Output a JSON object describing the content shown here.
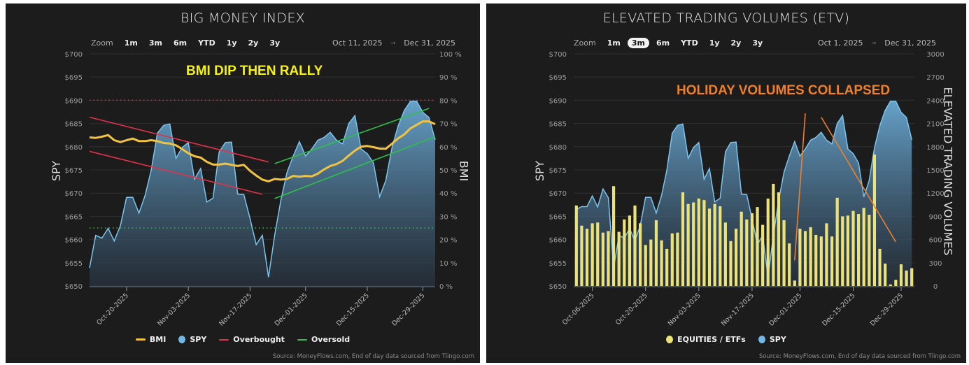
{
  "colors": {
    "spy": "#6fb8e6",
    "bmi": "#f2c242",
    "overbought": "#e0334a",
    "oversold": "#2fbf4a",
    "equities": "#ece27a",
    "orange": "#f07f2a",
    "note_yellow": "#f6f20a"
  },
  "chart_data": [
    {
      "type": "line",
      "title": "BIG MONEY INDEX",
      "annotation_text": "BMI DIP THEN RALLY",
      "zoom": {
        "label": "Zoom",
        "options": [
          "1m",
          "3m",
          "6m",
          "YTD",
          "1y",
          "2y",
          "3y"
        ],
        "selected": null
      },
      "range": {
        "from": "Oct 11, 2025",
        "to": "Dec 31, 2025"
      },
      "ylabel": "SPY",
      "y2label": "BMI",
      "ylim": [
        650,
        700
      ],
      "y2lim": [
        0,
        100
      ],
      "y_ticks": [
        "$700",
        "$695",
        "$690",
        "$685",
        "$680",
        "$675",
        "$670",
        "$665",
        "$660",
        "$655",
        "$650"
      ],
      "y2_ticks": [
        "100 %",
        "90 %",
        "80 %",
        "70 %",
        "60 %",
        "50 %",
        "40 %",
        "30 %",
        "20 %",
        "10 %",
        "0 %"
      ],
      "x_ticks": [
        {
          "date": "2025-10-20",
          "label": "Oct-20-2025"
        },
        {
          "date": "2025-11-03",
          "label": "Nov-03-2025"
        },
        {
          "date": "2025-11-17",
          "label": "Nov-17-2025"
        },
        {
          "date": "2025-12-01",
          "label": "Dec-01-2025"
        },
        {
          "date": "2025-12-15",
          "label": "Dec-15-2025"
        },
        {
          "date": "2025-12-29",
          "label": "Dec-29-2025"
        }
      ],
      "x": [
        "2025-10-10",
        "2025-10-13",
        "2025-10-14",
        "2025-10-15",
        "2025-10-16",
        "2025-10-17",
        "2025-10-20",
        "2025-10-21",
        "2025-10-22",
        "2025-10-23",
        "2025-10-24",
        "2025-10-27",
        "2025-10-28",
        "2025-10-29",
        "2025-10-30",
        "2025-10-31",
        "2025-11-03",
        "2025-11-04",
        "2025-11-05",
        "2025-11-06",
        "2025-11-07",
        "2025-11-10",
        "2025-11-11",
        "2025-11-12",
        "2025-11-13",
        "2025-11-14",
        "2025-11-17",
        "2025-11-18",
        "2025-11-19",
        "2025-11-20",
        "2025-11-21",
        "2025-11-24",
        "2025-11-25",
        "2025-11-26",
        "2025-11-28",
        "2025-12-01",
        "2025-12-02",
        "2025-12-03",
        "2025-12-04",
        "2025-12-05",
        "2025-12-08",
        "2025-12-09",
        "2025-12-10",
        "2025-12-11",
        "2025-12-12",
        "2025-12-15",
        "2025-12-16",
        "2025-12-17",
        "2025-12-18",
        "2025-12-19",
        "2025-12-22",
        "2025-12-23",
        "2025-12-24",
        "2025-12-26",
        "2025-12-29",
        "2025-12-30",
        "2025-12-31"
      ],
      "series": [
        {
          "name": "SPY",
          "axis": "left",
          "kind": "area",
          "values": [
            653.9,
            660.9,
            660.3,
            662.4,
            659.7,
            663.0,
            669.1,
            669.1,
            665.7,
            669.5,
            675.0,
            682.9,
            684.6,
            684.9,
            677.5,
            679.8,
            680.9,
            673.0,
            675.3,
            668.1,
            668.9,
            678.9,
            680.9,
            681.0,
            669.8,
            669.7,
            664.5,
            658.9,
            660.9,
            651.9,
            660.9,
            668.5,
            674.5,
            678.0,
            681.1,
            678.0,
            679.5,
            681.4,
            682.0,
            683.1,
            681.4,
            680.6,
            685.0,
            686.7,
            679.5,
            678.5,
            676.5,
            669.2,
            672.7,
            679.8,
            684.5,
            687.8,
            689.8,
            689.8,
            687.4,
            686.3,
            681.5
          ]
        },
        {
          "name": "BMI",
          "axis": "right",
          "kind": "line",
          "values": [
            64.0,
            63.8,
            64.3,
            65.0,
            62.8,
            62.0,
            62.8,
            63.5,
            62.4,
            62.4,
            62.8,
            62.4,
            61.6,
            61.4,
            60.6,
            59.0,
            57.2,
            55.9,
            55.3,
            53.5,
            52.3,
            52.3,
            52.7,
            52.2,
            51.7,
            52.2,
            49.6,
            47.6,
            45.8,
            45.1,
            46.1,
            45.8,
            46.1,
            47.4,
            47.1,
            47.4,
            47.2,
            48.4,
            50.2,
            51.7,
            52.5,
            53.9,
            56.2,
            58.3,
            60.0,
            60.3,
            59.8,
            59.2,
            59.1,
            61.3,
            63.6,
            65.3,
            67.9,
            69.4,
            70.9,
            70.9,
            69.7
          ]
        }
      ],
      "reference_lines": [
        {
          "name": "Overbought",
          "axis": "right",
          "value": 80,
          "color": "#e0334a"
        },
        {
          "name": "Oversold",
          "axis": "right",
          "value": 25,
          "color": "#2fbf4a"
        }
      ],
      "trend_lines": [
        {
          "axis": "right",
          "from": [
            "2025-10-10",
            72.7
          ],
          "to": [
            "2025-11-20",
            53.4
          ],
          "color": "#e0334a"
        },
        {
          "axis": "right",
          "from": [
            "2025-10-10",
            58.0
          ],
          "to": [
            "2025-11-19",
            39.5
          ],
          "color": "#e0334a"
        },
        {
          "axis": "right",
          "from": [
            "2025-11-21",
            52.7
          ],
          "to": [
            "2025-12-30",
            76.5
          ],
          "color": "#2fbf4a"
        },
        {
          "axis": "right",
          "from": [
            "2025-11-21",
            37.7
          ],
          "to": [
            "2025-12-31",
            64.3
          ],
          "color": "#2fbf4a"
        }
      ],
      "legend": {
        "placement": "bottom",
        "items": [
          {
            "label": "BMI",
            "type": "line",
            "color": "#f2c242"
          },
          {
            "label": "SPY",
            "type": "dot",
            "color": "#6fb8e6"
          },
          {
            "label": "Overbought",
            "type": "line",
            "color": "#e0334a"
          },
          {
            "label": "Oversold",
            "type": "line",
            "color": "#2fbf4a"
          }
        ]
      },
      "source": "Source: MoneyFlows.com, End of day data sourced from Tiingo.com",
      "grid": true
    },
    {
      "type": "bar",
      "title": "ELEVATED TRADING VOLUMES (ETV)",
      "annotation_text": "HOLIDAY VOLUMES COLLAPSED",
      "zoom": {
        "label": "Zoom",
        "options": [
          "1m",
          "3m",
          "6m",
          "YTD",
          "1y",
          "2y",
          "3y"
        ],
        "selected": "3m"
      },
      "range": {
        "from": "Oct 1, 2025",
        "to": "Dec 31, 2025"
      },
      "ylabel": "SPY",
      "y2label": "ELEVATED TRADING VOLUMES",
      "ylim": [
        650,
        700
      ],
      "y2lim": [
        0,
        3000
      ],
      "y_ticks": [
        "$700",
        "$695",
        "$690",
        "$685",
        "$680",
        "$675",
        "$670",
        "$665",
        "$660",
        "$655",
        "$650"
      ],
      "y2_ticks": [
        "3000",
        "2700",
        "2400",
        "2100",
        "1800",
        "1500",
        "1200",
        "900",
        "600",
        "300",
        "0"
      ],
      "x_ticks": [
        {
          "date": "2025-10-06",
          "label": "Oct-06-2025"
        },
        {
          "date": "2025-10-20",
          "label": "Oct-20-2025"
        },
        {
          "date": "2025-11-03",
          "label": "Nov-03-2025"
        },
        {
          "date": "2025-11-17",
          "label": "Nov-17-2025"
        },
        {
          "date": "2025-12-01",
          "label": "Dec-01-2025"
        },
        {
          "date": "2025-12-15",
          "label": "Dec-15-2025"
        },
        {
          "date": "2025-12-29",
          "label": "Dec-29-2025"
        }
      ],
      "x": [
        "2025-10-01",
        "2025-10-02",
        "2025-10-03",
        "2025-10-06",
        "2025-10-07",
        "2025-10-08",
        "2025-10-09",
        "2025-10-10",
        "2025-10-13",
        "2025-10-14",
        "2025-10-15",
        "2025-10-16",
        "2025-10-17",
        "2025-10-20",
        "2025-10-21",
        "2025-10-22",
        "2025-10-23",
        "2025-10-24",
        "2025-10-27",
        "2025-10-28",
        "2025-10-29",
        "2025-10-30",
        "2025-10-31",
        "2025-11-03",
        "2025-11-04",
        "2025-11-05",
        "2025-11-06",
        "2025-11-07",
        "2025-11-10",
        "2025-11-11",
        "2025-11-12",
        "2025-11-13",
        "2025-11-14",
        "2025-11-17",
        "2025-11-18",
        "2025-11-19",
        "2025-11-20",
        "2025-11-21",
        "2025-11-24",
        "2025-11-25",
        "2025-11-26",
        "2025-11-28",
        "2025-12-01",
        "2025-12-02",
        "2025-12-03",
        "2025-12-04",
        "2025-12-05",
        "2025-12-08",
        "2025-12-09",
        "2025-12-10",
        "2025-12-11",
        "2025-12-12",
        "2025-12-15",
        "2025-12-16",
        "2025-12-17",
        "2025-12-18",
        "2025-12-19",
        "2025-12-22",
        "2025-12-23",
        "2025-12-24",
        "2025-12-26",
        "2025-12-29",
        "2025-12-30",
        "2025-12-31"
      ],
      "series": [
        {
          "name": "SPY",
          "axis": "left",
          "kind": "area",
          "values": [
            666.5,
            667.1,
            667.1,
            669.4,
            667.0,
            670.9,
            669.0,
            653.9,
            660.9,
            660.3,
            662.4,
            659.7,
            663.0,
            669.1,
            669.1,
            665.7,
            669.5,
            675.0,
            682.9,
            684.6,
            684.9,
            677.5,
            679.8,
            680.9,
            673.0,
            675.3,
            668.1,
            668.9,
            678.9,
            680.9,
            681.0,
            669.8,
            669.7,
            664.5,
            658.9,
            660.9,
            651.9,
            660.9,
            668.5,
            674.5,
            678.0,
            681.1,
            678.0,
            679.5,
            681.4,
            682.0,
            683.1,
            681.4,
            680.6,
            685.0,
            686.7,
            679.5,
            678.5,
            676.5,
            669.2,
            672.7,
            679.8,
            684.5,
            687.8,
            689.8,
            689.8,
            687.4,
            686.3,
            681.5
          ]
        },
        {
          "name": "EQUITIES / ETFs",
          "axis": "right",
          "kind": "bar",
          "values": [
            1040,
            780,
            740,
            810,
            820,
            690,
            710,
            1290,
            700,
            860,
            910,
            1040,
            810,
            530,
            600,
            850,
            590,
            480,
            680,
            690,
            1210,
            1060,
            1080,
            1130,
            1110,
            1000,
            1060,
            1030,
            820,
            580,
            740,
            960,
            860,
            940,
            1020,
            790,
            1130,
            1320,
            1210,
            850,
            550,
            70,
            740,
            710,
            760,
            660,
            640,
            810,
            640,
            1140,
            900,
            910,
            970,
            930,
            1010,
            920,
            1700,
            480,
            290,
            20,
            80,
            280,
            200,
            230
          ]
        }
      ],
      "reference_lines": [],
      "trend_lines": [
        {
          "axis": "right",
          "from": [
            "2025-11-28",
            330
          ],
          "to": [
            "2025-12-02",
            2230
          ],
          "color": "#f07f2a"
        },
        {
          "axis": "right",
          "from": [
            "2025-12-05",
            2180
          ],
          "to": [
            "2025-12-26",
            570
          ],
          "color": "#f07f2a"
        }
      ],
      "legend": {
        "placement": "bottom",
        "items": [
          {
            "label": "EQUITIES / ETFs",
            "type": "dot",
            "color": "#ece27a"
          },
          {
            "label": "SPY",
            "type": "dot",
            "color": "#6fb8e6"
          }
        ]
      },
      "source": "Source: MoneyFlows.com, End of day data sourced from Tiingo.com",
      "grid": true
    }
  ]
}
